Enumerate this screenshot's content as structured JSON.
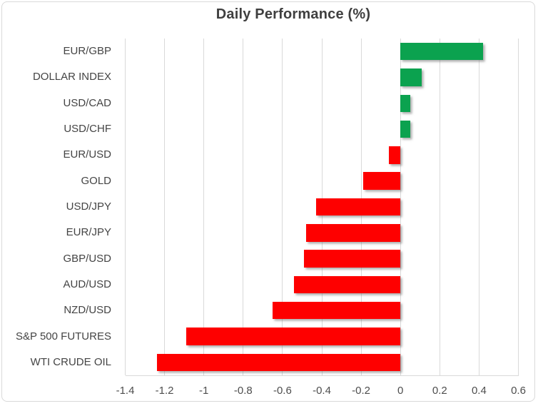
{
  "chart_data": {
    "type": "bar",
    "orientation": "horizontal",
    "title": "Daily Performance (%)",
    "xlabel": "",
    "ylabel": "",
    "categories": [
      "EUR/GBP",
      "DOLLAR INDEX",
      "USD/CAD",
      "USD/CHF",
      "EUR/USD",
      "GOLD",
      "USD/JPY",
      "EUR/JPY",
      "GBP/USD",
      "AUD/USD",
      "NZD/USD",
      "S&P 500 FUTURES",
      "WTI CRUDE OIL"
    ],
    "values": [
      0.42,
      0.11,
      0.05,
      0.05,
      -0.06,
      -0.19,
      -0.43,
      -0.48,
      -0.49,
      -0.54,
      -0.65,
      -1.09,
      -1.24
    ],
    "xlim": [
      -1.4,
      0.6
    ],
    "xticks": [
      -1.4,
      -1.2,
      -1.0,
      -0.8,
      -0.6,
      -0.4,
      -0.2,
      0,
      0.2,
      0.4,
      0.6
    ],
    "xtick_labels": [
      "-1.4",
      "-1.2",
      "-1",
      "-0.8",
      "-0.6",
      "-0.4",
      "-0.2",
      "0",
      "0.2",
      "0.4",
      "0.6"
    ],
    "grid": true,
    "legend": false,
    "positive_color": "#0ba24f",
    "negative_color": "#fe0000"
  },
  "colors": {
    "positive": "#0ba24f",
    "negative": "#fe0000",
    "gridline": "#d9d9d9",
    "border": "#d9d9d9",
    "title_text": "#3f3f3f",
    "label_text": "#444444"
  }
}
